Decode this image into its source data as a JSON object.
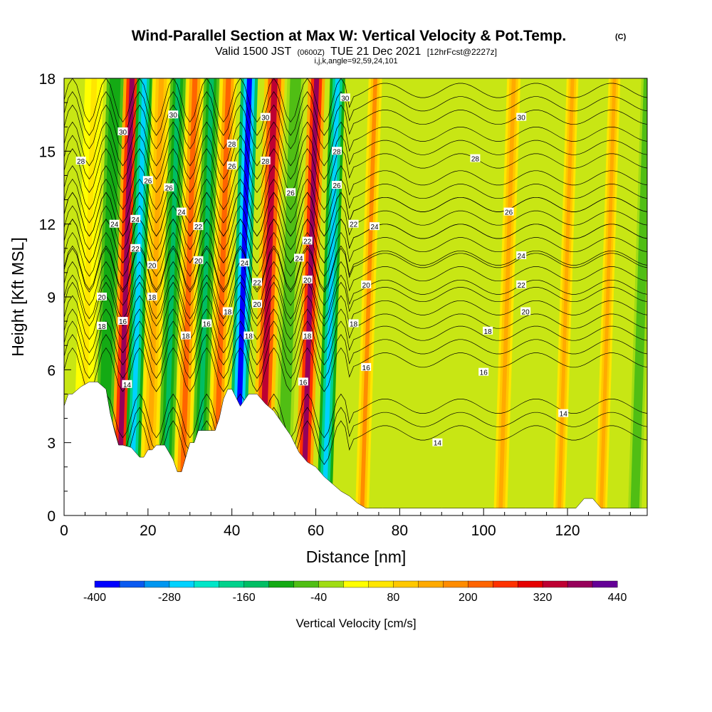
{
  "chart_data": {
    "type": "heatmap",
    "title": "Wind-Parallel Section at Max W: Vertical Velocity & Pot.Temp.",
    "title_mark": "(C)",
    "subtitle": {
      "valid_prefix": "Valid 1500 JST",
      "utc": "(0600Z)",
      "date": "TUE 21 Dec 2021",
      "forecast": "[12hrFcst@2227z]"
    },
    "ijk_line": "i,j,k,angle=92,59,24,101",
    "xlabel": "Distance [nm]",
    "ylabel": "Height [Kft MSL]",
    "xlim": [
      0,
      139
    ],
    "ylim": [
      0,
      18
    ],
    "xticks": [
      0,
      20,
      40,
      60,
      80,
      100,
      120
    ],
    "yticks": [
      0,
      3,
      6,
      9,
      12,
      15,
      18
    ],
    "colorbar": {
      "label": "Vertical Velocity [cm/s]",
      "tick_labels": [
        "-400",
        "-280",
        "-160",
        "-40",
        "80",
        "200",
        "320",
        "440"
      ],
      "levels": [
        -400,
        -360,
        -320,
        -280,
        -240,
        -200,
        -160,
        -120,
        -80,
        -40,
        0,
        40,
        80,
        120,
        160,
        200,
        240,
        280,
        320,
        360,
        400,
        440
      ],
      "colors": [
        "#0000ff",
        "#0a5af0",
        "#0096f0",
        "#00d2ff",
        "#00e6c8",
        "#00d28c",
        "#00be64",
        "#14aa14",
        "#50be14",
        "#a0dc14",
        "#ffff00",
        "#ffe600",
        "#ffc800",
        "#ffaa00",
        "#ff8c00",
        "#ff6400",
        "#ff3200",
        "#e60000",
        "#be0032",
        "#96005a",
        "#640096"
      ]
    },
    "velocity_bands": [
      {
        "x": 4,
        "w": 40,
        "width_nm": 2.2
      },
      {
        "x": 9,
        "w": -120,
        "width_nm": 2.0
      },
      {
        "x": 13,
        "w": 380,
        "width_nm": 2.0
      },
      {
        "x": 16,
        "w": -280,
        "width_nm": 1.8
      },
      {
        "x": 20,
        "w": 120,
        "width_nm": 2.0
      },
      {
        "x": 24,
        "w": -160,
        "width_nm": 1.8
      },
      {
        "x": 28,
        "w": 200,
        "width_nm": 2.0
      },
      {
        "x": 32,
        "w": -160,
        "width_nm": 1.8
      },
      {
        "x": 36,
        "w": 200,
        "width_nm": 2.0
      },
      {
        "x": 41,
        "w": -400,
        "width_nm": 2.0
      },
      {
        "x": 47,
        "w": 320,
        "width_nm": 2.4
      },
      {
        "x": 52,
        "w": -80,
        "width_nm": 2.0
      },
      {
        "x": 57,
        "w": 360,
        "width_nm": 2.0
      },
      {
        "x": 62,
        "w": -280,
        "width_nm": 1.8
      },
      {
        "x": 71,
        "w": 160,
        "width_nm": 1.6
      },
      {
        "x": 104,
        "w": 120,
        "width_nm": 1.6
      },
      {
        "x": 118,
        "w": 120,
        "width_nm": 1.4
      },
      {
        "x": 128,
        "w": 120,
        "width_nm": 1.4
      },
      {
        "x": 136,
        "w": -60,
        "width_nm": 1.6
      }
    ],
    "terrain": {
      "x": [
        0,
        1,
        2,
        4,
        6,
        8,
        10,
        11,
        12,
        13,
        14,
        16,
        18,
        19,
        20,
        21,
        22,
        24,
        25,
        26,
        27,
        28,
        30,
        31,
        32,
        34,
        36,
        37,
        38,
        39,
        40,
        42,
        44,
        46,
        48,
        50,
        52,
        54,
        56,
        58,
        60,
        62,
        64,
        66,
        68,
        70,
        72,
        76,
        80,
        90,
        100,
        110,
        120,
        122,
        124,
        126,
        128,
        130,
        139
      ],
      "y": [
        4.5,
        5.0,
        5.0,
        5.3,
        5.5,
        5.5,
        5.2,
        4.2,
        3.5,
        2.9,
        2.9,
        2.8,
        2.4,
        2.4,
        2.7,
        2.7,
        2.9,
        2.9,
        2.6,
        2.3,
        1.8,
        1.8,
        3.0,
        3.0,
        3.5,
        3.5,
        3.5,
        4.0,
        4.8,
        5.2,
        5.2,
        4.5,
        5.0,
        5.0,
        4.6,
        4.3,
        3.8,
        3.3,
        2.6,
        2.2,
        2.0,
        1.6,
        1.3,
        1.0,
        0.8,
        0.5,
        0.3,
        0.3,
        0.3,
        0.3,
        0.3,
        0.3,
        0.3,
        0.3,
        0.7,
        0.7,
        0.3,
        0.3,
        0.3
      ]
    },
    "isentropes": {
      "levels": [
        14,
        16,
        18,
        20,
        22,
        24,
        26,
        28,
        30
      ],
      "labels": [
        {
          "t": "14",
          "x": 15,
          "y": 5.4
        },
        {
          "t": "14",
          "x": 89,
          "y": 3.0
        },
        {
          "t": "14",
          "x": 119,
          "y": 4.2
        },
        {
          "t": "16",
          "x": 14,
          "y": 8.0
        },
        {
          "t": "16",
          "x": 34,
          "y": 7.9
        },
        {
          "t": "16",
          "x": 57,
          "y": 5.5
        },
        {
          "t": "16",
          "x": 72,
          "y": 6.1
        },
        {
          "t": "16",
          "x": 100,
          "y": 5.9
        },
        {
          "t": "18",
          "x": 9,
          "y": 7.8
        },
        {
          "t": "18",
          "x": 29,
          "y": 7.4
        },
        {
          "t": "18",
          "x": 39,
          "y": 8.4
        },
        {
          "t": "18",
          "x": 44,
          "y": 7.4
        },
        {
          "t": "18",
          "x": 58,
          "y": 7.4
        },
        {
          "t": "18",
          "x": 69,
          "y": 7.9
        },
        {
          "t": "18",
          "x": 101,
          "y": 7.6
        },
        {
          "t": "20",
          "x": 9,
          "y": 9.0
        },
        {
          "t": "20",
          "x": 21,
          "y": 10.3
        },
        {
          "t": "20",
          "x": 32,
          "y": 10.5
        },
        {
          "t": "20",
          "x": 46,
          "y": 8.7
        },
        {
          "t": "20",
          "x": 58,
          "y": 9.7
        },
        {
          "t": "20",
          "x": 72,
          "y": 9.5
        },
        {
          "t": "20",
          "x": 110,
          "y": 8.4
        },
        {
          "t": "18",
          "x": 21,
          "y": 9.0
        },
        {
          "t": "22",
          "x": 17,
          "y": 11.0
        },
        {
          "t": "22",
          "x": 32,
          "y": 11.9
        },
        {
          "t": "22",
          "x": 46,
          "y": 9.6
        },
        {
          "t": "22",
          "x": 58,
          "y": 11.3
        },
        {
          "t": "22",
          "x": 69,
          "y": 12.0
        },
        {
          "t": "22",
          "x": 109,
          "y": 9.5
        },
        {
          "t": "24",
          "x": 12,
          "y": 12.0
        },
        {
          "t": "24",
          "x": 17,
          "y": 12.2
        },
        {
          "t": "24",
          "x": 28,
          "y": 12.5
        },
        {
          "t": "24",
          "x": 43,
          "y": 10.4
        },
        {
          "t": "24",
          "x": 56,
          "y": 10.6
        },
        {
          "t": "24",
          "x": 74,
          "y": 11.9
        },
        {
          "t": "24",
          "x": 109,
          "y": 10.7
        },
        {
          "t": "26",
          "x": 20,
          "y": 13.8
        },
        {
          "t": "26",
          "x": 25,
          "y": 13.5
        },
        {
          "t": "26",
          "x": 40,
          "y": 14.4
        },
        {
          "t": "26",
          "x": 54,
          "y": 13.3
        },
        {
          "t": "26",
          "x": 65,
          "y": 13.6
        },
        {
          "t": "26",
          "x": 106,
          "y": 12.5
        },
        {
          "t": "28",
          "x": 4,
          "y": 14.6
        },
        {
          "t": "28",
          "x": 40,
          "y": 15.3
        },
        {
          "t": "28",
          "x": 48,
          "y": 14.6
        },
        {
          "t": "28",
          "x": 65,
          "y": 15.0
        },
        {
          "t": "28",
          "x": 98,
          "y": 14.7
        },
        {
          "t": "30",
          "x": 14,
          "y": 15.8
        },
        {
          "t": "30",
          "x": 26,
          "y": 16.5
        },
        {
          "t": "30",
          "x": 48,
          "y": 16.4
        },
        {
          "t": "30",
          "x": 67,
          "y": 17.2
        },
        {
          "t": "30",
          "x": 109,
          "y": 16.4
        }
      ]
    }
  }
}
